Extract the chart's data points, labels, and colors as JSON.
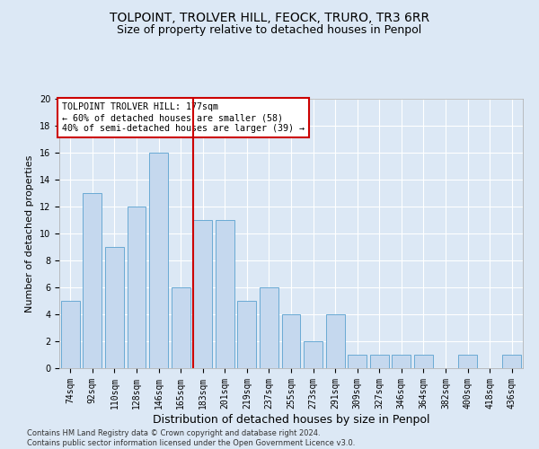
{
  "title": "TOLPOINT, TROLVER HILL, FEOCK, TRURO, TR3 6RR",
  "subtitle": "Size of property relative to detached houses in Penpol",
  "xlabel": "Distribution of detached houses by size in Penpol",
  "ylabel": "Number of detached properties",
  "categories": [
    "74sqm",
    "92sqm",
    "110sqm",
    "128sqm",
    "146sqm",
    "165sqm",
    "183sqm",
    "201sqm",
    "219sqm",
    "237sqm",
    "255sqm",
    "273sqm",
    "291sqm",
    "309sqm",
    "327sqm",
    "346sqm",
    "364sqm",
    "382sqm",
    "400sqm",
    "418sqm",
    "436sqm"
  ],
  "values": [
    5,
    13,
    9,
    12,
    16,
    6,
    11,
    11,
    5,
    6,
    4,
    2,
    4,
    1,
    1,
    1,
    1,
    0,
    1,
    0,
    1
  ],
  "bar_color": "#c5d8ee",
  "bar_edge_color": "#6aaad4",
  "vline_color": "#cc0000",
  "annotation_text": "TOLPOINT TROLVER HILL: 177sqm\n← 60% of detached houses are smaller (58)\n40% of semi-detached houses are larger (39) →",
  "annotation_box_color": "#ffffff",
  "annotation_box_edge": "#cc0000",
  "ylim": [
    0,
    20
  ],
  "yticks": [
    0,
    2,
    4,
    6,
    8,
    10,
    12,
    14,
    16,
    18,
    20
  ],
  "footer": "Contains HM Land Registry data © Crown copyright and database right 2024.\nContains public sector information licensed under the Open Government Licence v3.0.",
  "background_color": "#dce8f5",
  "plot_bg_color": "#dce8f5",
  "title_fontsize": 10,
  "subtitle_fontsize": 9,
  "xlabel_fontsize": 9,
  "ylabel_fontsize": 8,
  "grid_color": "#ffffff",
  "tick_fontsize": 7
}
